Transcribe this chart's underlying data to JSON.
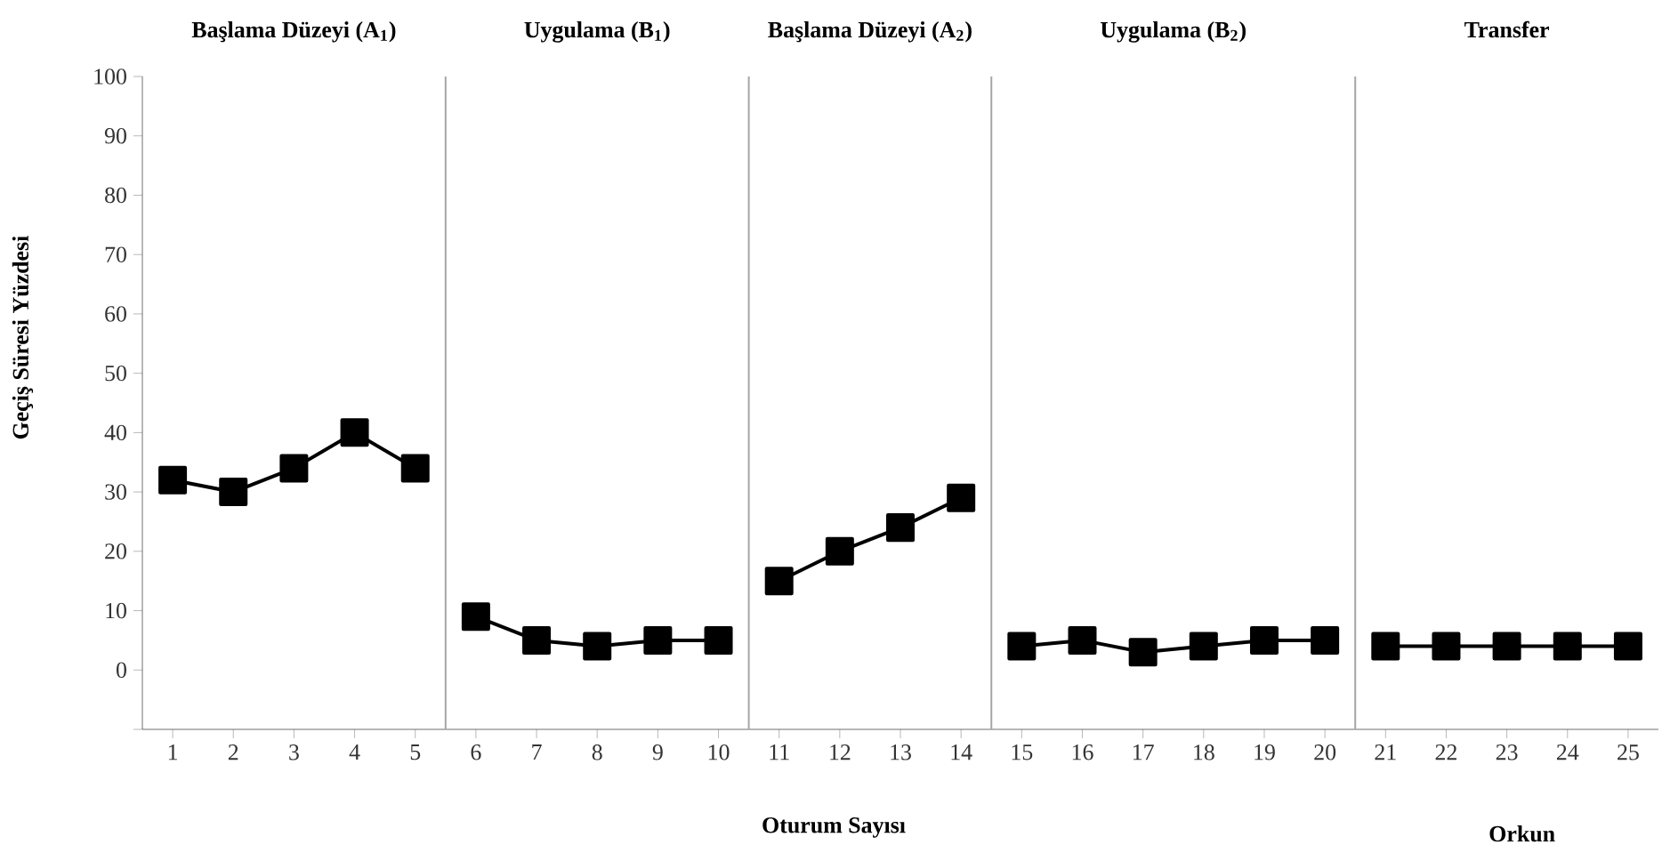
{
  "chart_data": {
    "type": "line",
    "xlabel": "Oturum Sayısı",
    "ylabel": "Geçiş Süresi Yüzdesi",
    "annotations": [
      "Başlama Düzeyi (A$_{1}$)",
      "Uygulama (B$_{1}$)",
      "Başlama Düzeyi (A$_{2}$)",
      "Uygulama (B$_{2}$)",
      "Transfer",
      "Orkun"
    ],
    "xlim": [
      0.5,
      25.5
    ],
    "xticks": [
      1,
      2,
      3,
      4,
      5,
      6,
      7,
      8,
      9,
      10,
      11,
      12,
      13,
      14,
      15,
      16,
      17,
      18,
      19,
      20,
      21,
      22,
      23,
      24,
      25
    ],
    "ylim": [
      -10,
      100
    ],
    "yticks": [
      {
        "value": -10,
        "label": null
      },
      0,
      10,
      20,
      30,
      40,
      50,
      60,
      70,
      80,
      90,
      100
    ],
    "series": [
      {
        "color": "#000000",
        "x": [
          1,
          2,
          3,
          4,
          5
        ],
        "values": [
          32,
          30,
          34,
          40,
          34
        ]
      },
      {
        "color": "#000000",
        "x": [
          6,
          7,
          8,
          9,
          10
        ],
        "values": [
          9,
          5,
          4,
          5,
          5
        ]
      },
      {
        "color": "#000000",
        "x": [
          11,
          12,
          13,
          14
        ],
        "values": [
          15,
          20,
          24,
          29
        ]
      },
      {
        "color": "#000000",
        "x": [
          15,
          16,
          17,
          18,
          19,
          20
        ],
        "values": [
          4,
          5,
          3,
          4,
          5,
          5
        ]
      },
      {
        "color": "#000000",
        "x": [
          21,
          22,
          23,
          24,
          25
        ],
        "values": [
          4,
          4,
          4,
          4,
          4
        ]
      }
    ],
    "ref_lines": [
      {
        "axis": "x",
        "value": 5.5,
        "color": "#a6a6a6"
      },
      {
        "axis": "x",
        "value": 10.5,
        "color": "#a6a6a6"
      },
      {
        "axis": "x",
        "value": 14.5,
        "color": "#a6a6a6"
      },
      {
        "axis": "x",
        "value": 20.5,
        "color": "#a6a6a6"
      }
    ],
    "grid": false,
    "marker": "square",
    "line_style": "solid"
  }
}
